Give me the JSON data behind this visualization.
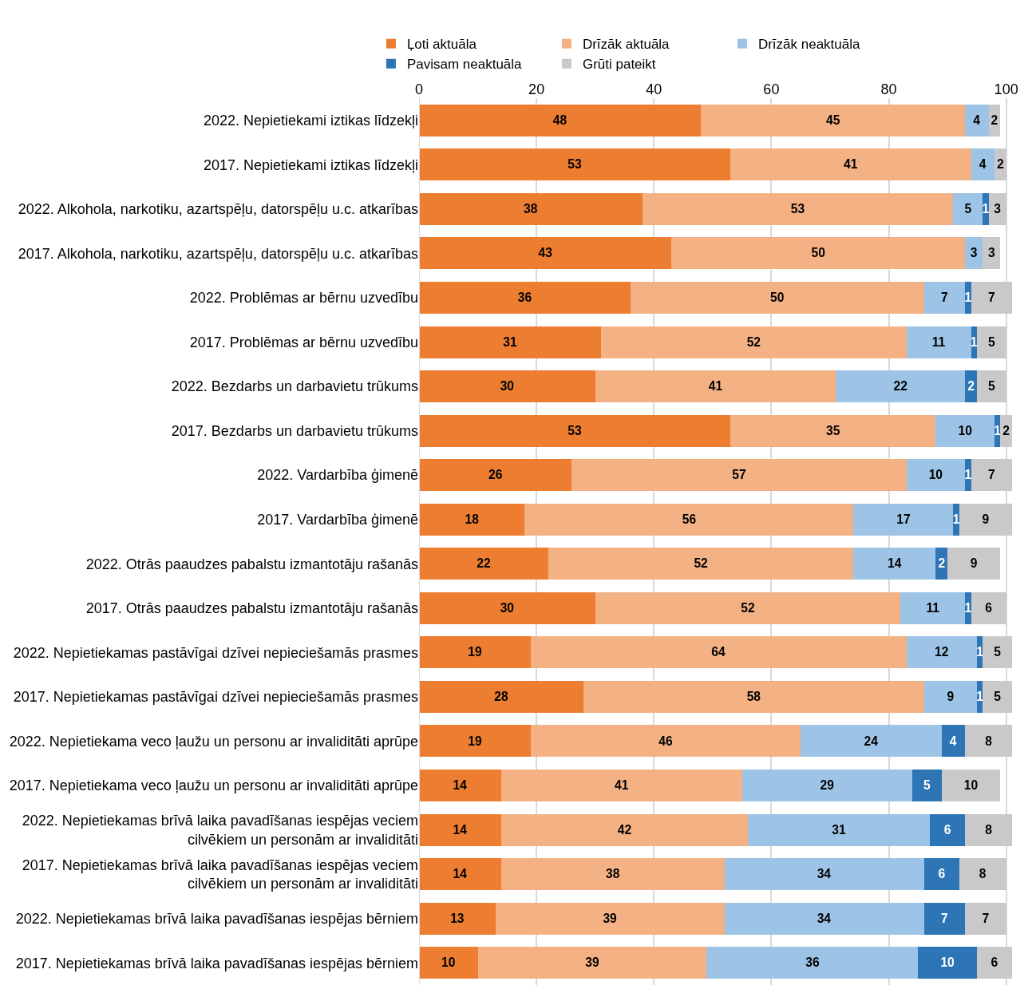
{
  "chart_data": {
    "type": "bar",
    "orientation": "horizontal",
    "stacked": true,
    "data_labels": true,
    "grid": "x",
    "legend": "top",
    "categories": [
      "2022. Nepietiekami iztikas līdzekļi",
      "2017. Nepietiekami iztikas līdzekļi",
      "2022. Alkohola, narkotiku, azartspēļu, datorspēļu u.c. atkarības",
      "2017. Alkohola, narkotiku, azartspēļu, datorspēļu u.c. atkarības",
      "2022. Problēmas ar bērnu uzvedību",
      "2017. Problēmas ar bērnu uzvedību",
      "2022. Bezdarbs un darbavietu trūkums",
      "2017. Bezdarbs un darbavietu trūkums",
      "2022. Vardarbība ģimenē",
      "2017. Vardarbība ģimenē",
      "2022. Otrās paaudzes pabalstu izmantotāju rašanās",
      "2017. Otrās paaudzes pabalstu izmantotāju rašanās",
      "2022. Nepietiekamas pastāvīgai dzīvei nepieciešamās prasmes",
      "2017. Nepietiekamas pastāvīgai dzīvei nepieciešamās prasmes",
      "2022. Nepietiekama veco ļaužu un personu ar invaliditāti aprūpe",
      "2017. Nepietiekama veco ļaužu un personu ar invaliditāti aprūpe",
      "2022. Nepietiekamas brīvā laika pavadīšanas iespējas veciem cilvēkiem un personām ar invaliditāti",
      "2017. Nepietiekamas brīvā laika pavadīšanas iespējas veciem cilvēkiem un personām ar invaliditāti",
      "2022. Nepietiekamas brīvā laika pavadīšanas iespējas bērniem",
      "2017. Nepietiekamas brīvā laika pavadīšanas iespējas bērniem"
    ],
    "series": [
      {
        "name": "Ļoti aktuāla",
        "color": "#ed7d31",
        "values": [
          48,
          53,
          38,
          43,
          36,
          31,
          30,
          53,
          26,
          18,
          22,
          30,
          19,
          28,
          19,
          14,
          14,
          14,
          13,
          10
        ]
      },
      {
        "name": "Drīzāk aktuāla",
        "color": "#f4b183",
        "values": [
          45,
          41,
          53,
          50,
          50,
          52,
          41,
          35,
          57,
          56,
          52,
          52,
          64,
          58,
          46,
          41,
          42,
          38,
          39,
          39
        ]
      },
      {
        "name": "Drīzāk neaktuāla",
        "color": "#9dc3e6",
        "values": [
          4,
          4,
          5,
          3,
          7,
          11,
          22,
          10,
          10,
          17,
          14,
          11,
          12,
          9,
          24,
          29,
          31,
          34,
          34,
          36
        ]
      },
      {
        "name": "Pavisam neaktuāla",
        "color": "#2e75b6",
        "values": [
          null,
          null,
          1,
          null,
          1,
          1,
          2,
          1,
          1,
          1,
          2,
          1,
          1,
          1,
          4,
          5,
          6,
          6,
          7,
          10
        ]
      },
      {
        "name": "Grūti pateikt",
        "color": "#c9c9c9",
        "values": [
          2,
          2,
          3,
          3,
          7,
          5,
          5,
          2,
          7,
          9,
          9,
          6,
          5,
          5,
          8,
          10,
          8,
          8,
          7,
          6
        ]
      }
    ],
    "xlim": [
      0,
      101
    ],
    "xticks": [
      0,
      20,
      40,
      60,
      80,
      100
    ]
  }
}
